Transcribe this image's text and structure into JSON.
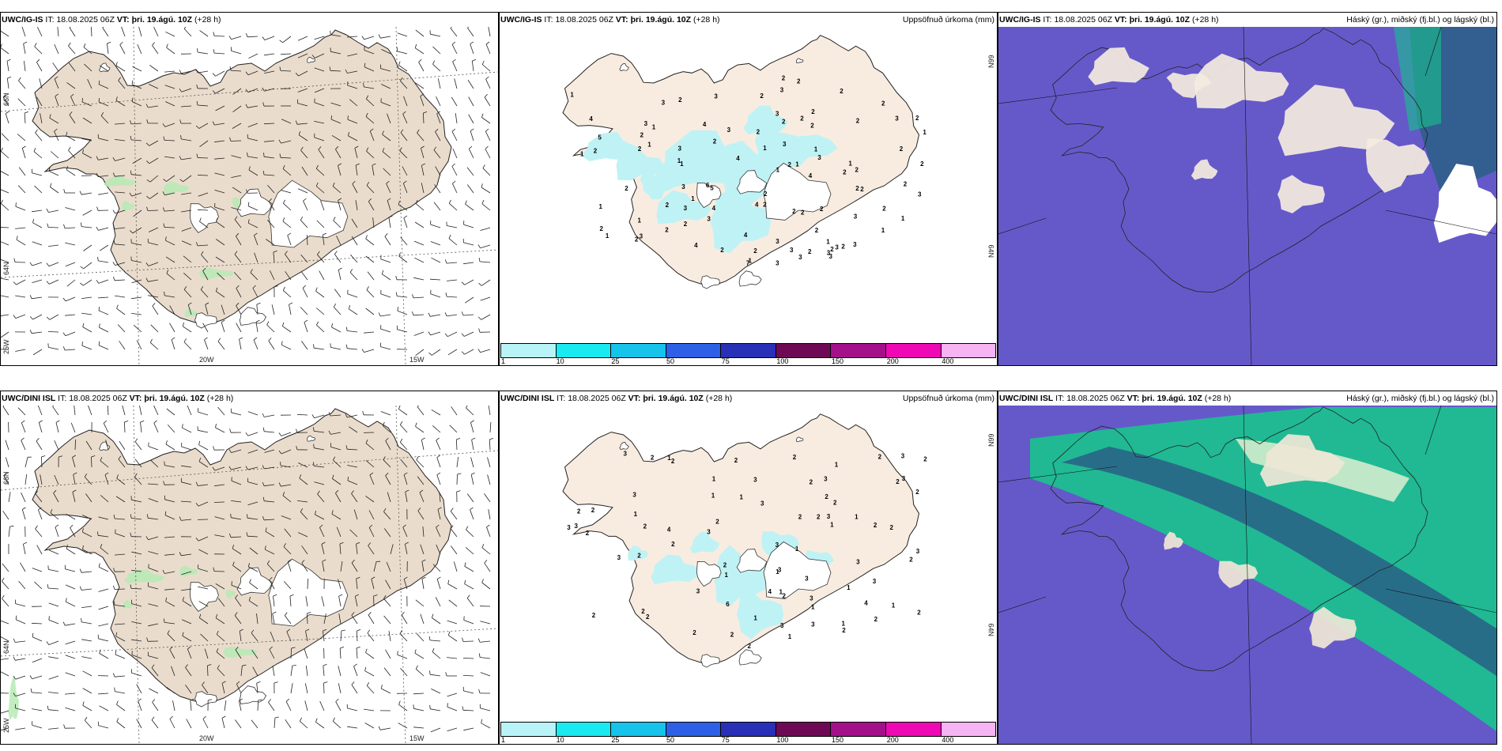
{
  "panels": [
    {
      "model": "UWC/IG-IS",
      "it_label": "IT:",
      "it": "18.08.2025 06Z",
      "vt_label": "VT:",
      "vt": "þri. 19.ágú. 10Z",
      "lead": "(+28 h)",
      "type": "wind",
      "right_title": ""
    },
    {
      "model": "UWC/IG-IS",
      "it_label": "IT:",
      "it": "18.08.2025 06Z",
      "vt_label": "VT:",
      "vt": "þri. 19.ágú. 10Z",
      "lead": "(+28 h)",
      "type": "precip",
      "right_title": "Uppsöfnuð úrkoma (mm)"
    },
    {
      "model": "UWC/IG-IS",
      "it_label": "IT:",
      "it": "18.08.2025 06Z",
      "vt_label": "VT:",
      "vt": "þri. 19.ágú. 10Z",
      "lead": "(+28 h)",
      "type": "cloud",
      "right_title": "Háský (gr.), miðský (fj.bl.) og lágský (bl.)"
    },
    {
      "model": "UWC/DINI ISL",
      "it_label": "IT:",
      "it": "18.08.2025 06Z",
      "vt_label": "VT:",
      "vt": "þri. 19.ágú. 10Z",
      "lead": "(+28 h)",
      "type": "wind",
      "right_title": ""
    },
    {
      "model": "UWC/DINI ISL",
      "it_label": "IT:",
      "it": "18.08.2025 06Z",
      "vt_label": "VT:",
      "vt": "þri. 19.ágú. 10Z",
      "lead": "(+28 h)",
      "type": "precip",
      "right_title": "Uppsöfnuð úrkoma (mm)"
    },
    {
      "model": "UWC/DINI ISL",
      "it_label": "IT:",
      "it": "18.08.2025 06Z",
      "vt_label": "VT:",
      "vt": "þri. 19.ágú. 10Z",
      "lead": "(+28 h)",
      "type": "cloud",
      "right_title": "Háský (gr.), miðský (fj.bl.) og lágský (bl.)"
    }
  ],
  "axes": {
    "lat_top": "66N",
    "lat_bottom": "64N",
    "lat_corner": "25W",
    "lon_left": "20W",
    "lon_right": "15W",
    "lat_right_top": "66N",
    "lat_right_bottom": "64N"
  },
  "precip_scale": {
    "labels": [
      "1",
      "10",
      "25",
      "50",
      "75",
      "100",
      "150",
      "200",
      "400"
    ],
    "colors": [
      "#b8f3f7",
      "#19e9f0",
      "#16c3ea",
      "#2d60e6",
      "#2830b8",
      "#6e0a55",
      "#a4108a",
      "#ef09b4",
      "#f6b4f3"
    ]
  },
  "map_colors": {
    "land": "#eadccc",
    "land_light": "#f8ece0",
    "glacier": "#ffffff",
    "wind_green": "#b6eab4",
    "precip_cyan": "#bff2f5",
    "cloud_low": "#6559c9",
    "cloud_mid": "#2a5f86",
    "cloud_high": "#18c38d"
  },
  "precip_labels": {
    "uwc": [
      "2",
      "1",
      "1",
      "2",
      "1",
      "1",
      "1",
      "1",
      "2",
      "1",
      "2",
      "1",
      "2",
      "1",
      "2",
      "2",
      "2",
      "1",
      "3",
      "2",
      "2",
      "3",
      "2",
      "3",
      "4",
      "3",
      "4",
      "3",
      "5",
      "2",
      "3",
      "2",
      "2",
      "3",
      "5",
      "4",
      "3",
      "7",
      "4",
      "6",
      "3",
      "2",
      "4",
      "3",
      "2",
      "2",
      "3",
      "2",
      "1",
      "3",
      "2",
      "2",
      "1",
      "2",
      "1",
      "1",
      "2",
      "1",
      "2",
      "3",
      "2",
      "2",
      "2",
      "3",
      "2",
      "3",
      "3",
      "3",
      "2",
      "4",
      "3",
      "2",
      "2",
      "2",
      "3",
      "2",
      "2",
      "2",
      "1",
      "2",
      "1",
      "2",
      "3",
      "3",
      "3",
      "4",
      "2",
      "2",
      "2",
      "2",
      "3",
      "1",
      "3",
      "1",
      "2",
      "1",
      "4",
      "2",
      "2"
    ],
    "dini": [
      "2",
      "2",
      "1",
      "1",
      "1",
      "2",
      "2",
      "1",
      "2",
      "2",
      "1",
      "1",
      "2",
      "2",
      "1",
      "2",
      "1",
      "2",
      "2",
      "1",
      "2",
      "2",
      "2",
      "2",
      "1",
      "1",
      "3",
      "2",
      "2",
      "2",
      "3",
      "3",
      "2",
      "3",
      "2",
      "2",
      "2",
      "3",
      "4",
      "6",
      "3",
      "3",
      "3",
      "3",
      "4",
      "2",
      "2",
      "3",
      "3",
      "3",
      "1",
      "3",
      "3",
      "3",
      "3",
      "2",
      "2",
      "3",
      "4",
      "3",
      "2",
      "2",
      "2",
      "1",
      "2",
      "1",
      "1",
      "3",
      "3",
      "2",
      "2",
      "2",
      "1",
      "1",
      "1",
      "2",
      "3",
      "3"
    ]
  }
}
